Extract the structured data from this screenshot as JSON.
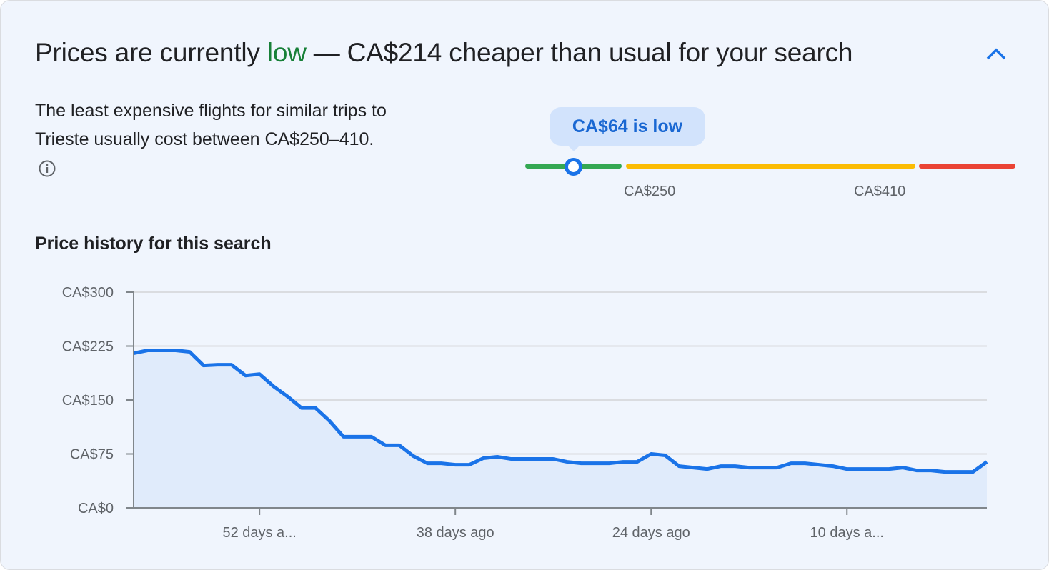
{
  "header": {
    "title_prefix": "Prices are currently ",
    "title_status": "low",
    "title_suffix": " — CA$214 cheaper than usual for your search",
    "collapse_icon": "chevron-up-icon"
  },
  "summary": {
    "text": "The least expensive flights for similar trips to Trieste usually cost between CA$250–410.",
    "info_icon": "info-icon"
  },
  "price_range": {
    "tooltip": "CA$64 is low",
    "current_price": 64,
    "low_label": "CA$250",
    "high_label": "CA$410",
    "colors": {
      "low": "#34a853",
      "typical": "#fbbc04",
      "high": "#ea4335"
    }
  },
  "history_title": "Price history for this search",
  "chart_data": {
    "type": "area",
    "title": "",
    "xlabel": "",
    "ylabel": "",
    "ylim": [
      0,
      300
    ],
    "yticks": [
      "CA$0",
      "CA$75",
      "CA$150",
      "CA$225",
      "CA$300"
    ],
    "ytick_values": [
      0,
      75,
      150,
      225,
      300
    ],
    "xticks": [
      {
        "days_ago": 52,
        "label": "52 days a..."
      },
      {
        "days_ago": 38,
        "label": "38 days ago"
      },
      {
        "days_ago": 24,
        "label": "24 days ago"
      },
      {
        "days_ago": 10,
        "label": "10 days a..."
      }
    ],
    "xlim_days_ago": [
      61,
      0
    ],
    "grid": true,
    "color": "#1a73e8",
    "fill": "#e0ebfb",
    "series": [
      {
        "days_ago": [
          61,
          60,
          59,
          58,
          57,
          56,
          55,
          54,
          53,
          52,
          51,
          50,
          49,
          48,
          47,
          46,
          45,
          44,
          43,
          42,
          41,
          40,
          39,
          38,
          37,
          36,
          35,
          34,
          33,
          32,
          31,
          30,
          29,
          28,
          27,
          26,
          25,
          24,
          23,
          22,
          21,
          20,
          19,
          18,
          17,
          16,
          15,
          14,
          13,
          12,
          11,
          10,
          9,
          8,
          7,
          6,
          5,
          4,
          3,
          2,
          1,
          0
        ],
        "values": [
          215,
          219,
          219,
          219,
          217,
          198,
          199,
          199,
          184,
          186,
          169,
          155,
          139,
          139,
          121,
          99,
          99,
          99,
          87,
          87,
          72,
          62,
          62,
          60,
          60,
          69,
          71,
          68,
          68,
          68,
          68,
          64,
          62,
          62,
          62,
          64,
          64,
          75,
          73,
          58,
          56,
          54,
          58,
          58,
          56,
          56,
          56,
          62,
          62,
          60,
          58,
          54,
          54,
          54,
          54,
          56,
          52,
          52,
          50,
          50,
          50,
          64
        ]
      }
    ]
  }
}
